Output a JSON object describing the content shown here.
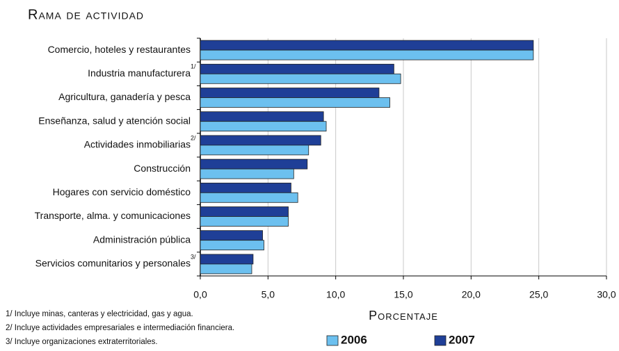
{
  "chart_data": {
    "type": "barh",
    "title": "Rama de actividad",
    "x_label": "Porcentaje",
    "categories": [
      "Comercio, hoteles y restaurantes",
      "Industria manufacturera",
      "Agricultura, ganadería y pesca",
      "Enseñanza, salud y atención social",
      "Actividades inmobiliarias",
      "Construcción",
      "Hogares con servicio doméstico",
      "Transporte, alma. y comunicaciones",
      "Administración pública",
      "Servicios comunitarios y personales"
    ],
    "category_notes": [
      null,
      "1/",
      null,
      null,
      "2/",
      null,
      null,
      null,
      null,
      "3/"
    ],
    "series": [
      {
        "name": "2007",
        "color": "#1f3f97",
        "values": [
          24.6,
          14.3,
          13.2,
          9.1,
          8.9,
          7.9,
          6.7,
          6.5,
          4.6,
          3.9
        ]
      },
      {
        "name": "2006",
        "color": "#6cc0ef",
        "values": [
          24.6,
          14.8,
          14.0,
          9.3,
          8.0,
          6.9,
          7.2,
          6.5,
          4.7,
          3.8
        ]
      }
    ],
    "xlim": [
      0,
      30
    ],
    "xticks": [
      {
        "value": 0,
        "label": "0,0"
      },
      {
        "value": 5,
        "label": "5,0"
      },
      {
        "value": 10,
        "label": "10,0"
      },
      {
        "value": 15,
        "label": "15,0"
      },
      {
        "value": 20,
        "label": "20,0"
      },
      {
        "value": 25,
        "label": "25,0"
      },
      {
        "value": 30,
        "label": "30,0"
      }
    ],
    "grid": true,
    "legend_order": [
      "2006",
      "2007"
    ],
    "footnotes": [
      "1/  Incluye minas, canteras y electricidad, gas y agua.",
      "2/  Incluye actividades empresariales e intermediación financiera.",
      "3/  Incluye organizaciones extraterritoriales."
    ]
  }
}
